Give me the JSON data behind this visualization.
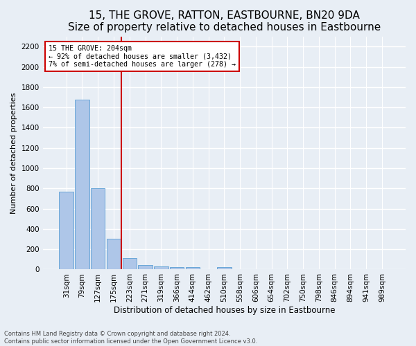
{
  "title": "15, THE GROVE, RATTON, EASTBOURNE, BN20 9DA",
  "subtitle": "Size of property relative to detached houses in Eastbourne",
  "xlabel": "Distribution of detached houses by size in Eastbourne",
  "ylabel": "Number of detached properties",
  "footnote1": "Contains HM Land Registry data © Crown copyright and database right 2024.",
  "footnote2": "Contains public sector information licensed under the Open Government Licence v3.0.",
  "bar_labels": [
    "31sqm",
    "79sqm",
    "127sqm",
    "175sqm",
    "223sqm",
    "271sqm",
    "319sqm",
    "366sqm",
    "414sqm",
    "462sqm",
    "510sqm",
    "558sqm",
    "606sqm",
    "654sqm",
    "702sqm",
    "750sqm",
    "798sqm",
    "846sqm",
    "894sqm",
    "941sqm",
    "989sqm"
  ],
  "bar_values": [
    770,
    1680,
    800,
    305,
    110,
    43,
    30,
    22,
    22,
    0,
    22,
    0,
    0,
    0,
    0,
    0,
    0,
    0,
    0,
    0,
    0
  ],
  "bar_color": "#aec6e8",
  "bar_edgecolor": "#5a9fd4",
  "property_line_bin": 3.5,
  "annotation_line1": "15 THE GROVE: 204sqm",
  "annotation_line2": "← 92% of detached houses are smaller (3,432)",
  "annotation_line3": "7% of semi-detached houses are larger (278) →",
  "annotation_box_color": "#cc0000",
  "ylim": [
    0,
    2300
  ],
  "yticks": [
    0,
    200,
    400,
    600,
    800,
    1000,
    1200,
    1400,
    1600,
    1800,
    2000,
    2200
  ],
  "bg_color": "#e8eef5",
  "grid_color": "#ffffff",
  "title_fontsize": 11,
  "axis_label_fontsize": 8.5,
  "tick_fontsize": 7.5,
  "ylabel_fontsize": 8
}
